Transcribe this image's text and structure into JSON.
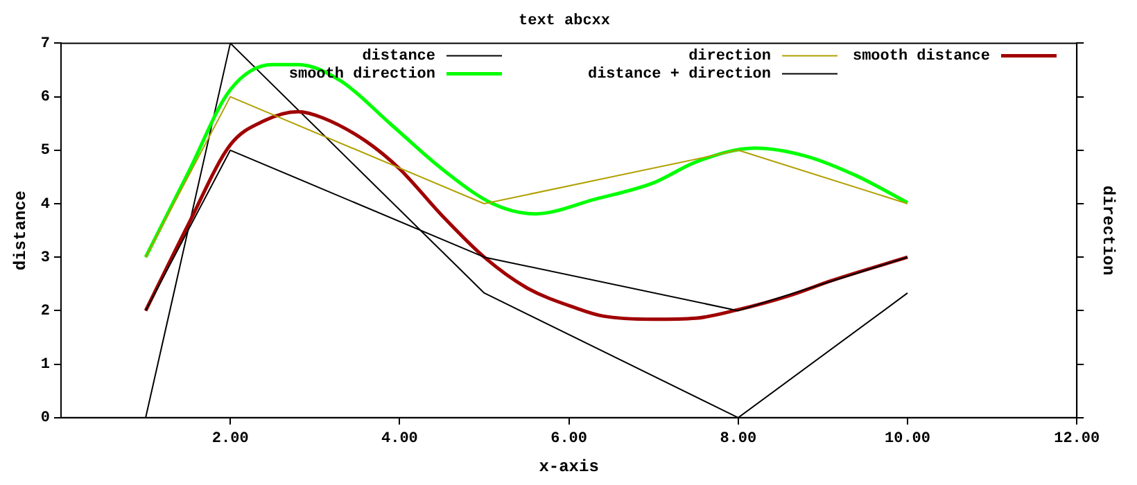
{
  "chart_data": {
    "type": "line",
    "title": "text abcxx",
    "xlabel": "x-axis",
    "ylabel": "distance",
    "y2label": "direction",
    "x": [
      1,
      2,
      5,
      8,
      10
    ],
    "xlim": [
      0,
      12
    ],
    "xticks": [
      {
        "value": 2,
        "label": "2.00"
      },
      {
        "value": 4,
        "label": "4.00"
      },
      {
        "value": 6,
        "label": "6.00"
      },
      {
        "value": 8,
        "label": "8.00"
      },
      {
        "value": 10,
        "label": "10.00"
      },
      {
        "value": 12,
        "label": "12.00"
      }
    ],
    "ylim": [
      0,
      7
    ],
    "yticks": [
      0,
      1,
      2,
      3,
      4,
      5,
      6,
      7
    ],
    "legend": "top",
    "grid": false,
    "marker": "none",
    "series": [
      {
        "name": "distance",
        "color": "#000000",
        "values": [
          2,
          5,
          3,
          2,
          3
        ]
      },
      {
        "name": "direction",
        "color": "#b0a000",
        "values": [
          3,
          6,
          4,
          5,
          4
        ]
      },
      {
        "name": "smooth distance",
        "color": "#a00000",
        "x": [
          1,
          1.5,
          2,
          2.4,
          2.8,
          3.1,
          3.6,
          4,
          4.5,
          5,
          5.5,
          6.1,
          6.4,
          7,
          7.5,
          8,
          8.6,
          9.1,
          10
        ],
        "values": [
          2,
          3.6,
          5.1,
          5.55,
          5.72,
          5.6,
          5.17,
          4.65,
          3.78,
          3.0,
          2.43,
          2.04,
          1.9,
          1.84,
          1.86,
          2.02,
          2.28,
          2.56,
          3.0
        ]
      },
      {
        "name": "smooth direction",
        "color": "#00ff00",
        "x": [
          1,
          1.5,
          2,
          2.5,
          2.8,
          3.3,
          3.9,
          4.5,
          5.1,
          5.6,
          6.3,
          7,
          7.5,
          8.2,
          8.8,
          9.4,
          10
        ],
        "values": [
          3,
          4.57,
          6.13,
          6.6,
          6.6,
          6.3,
          5.48,
          4.65,
          4.0,
          3.81,
          4.08,
          4.39,
          4.78,
          5.04,
          4.89,
          4.52,
          4.02
        ]
      },
      {
        "name": "distance + direction",
        "color": "#000000",
        "values": [
          0,
          7,
          2.33,
          0,
          2.33
        ]
      }
    ]
  }
}
